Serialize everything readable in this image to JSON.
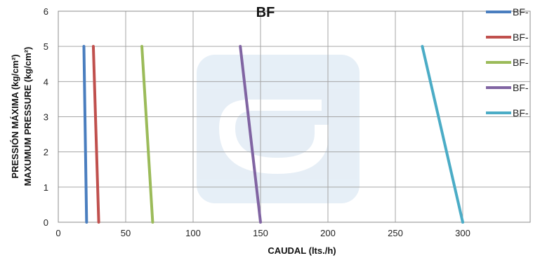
{
  "chart_data": {
    "type": "line",
    "title": "BF",
    "xlabel": "CAUDAL (lts./h)",
    "ylabel_lines": [
      "PRESSIÓN MÁXIMA (kg/cm²)",
      "MAXUMUM PRESSURE (kg/cm²)"
    ],
    "xlim": [
      0,
      350
    ],
    "ylim": [
      0,
      6
    ],
    "x_ticks": [
      0,
      50,
      100,
      150,
      200,
      250,
      300
    ],
    "y_ticks": [
      0,
      1,
      2,
      3,
      4,
      5,
      6
    ],
    "grid": true,
    "legend_position": "right",
    "series": [
      {
        "name": "BF-",
        "color": "#4a7ebf",
        "points": [
          [
            19,
            5
          ],
          [
            21,
            0
          ]
        ]
      },
      {
        "name": "BF-",
        "color": "#c0504d",
        "points": [
          [
            26,
            5
          ],
          [
            30,
            0
          ]
        ]
      },
      {
        "name": "BF-",
        "color": "#9bbb59",
        "points": [
          [
            62,
            5
          ],
          [
            70,
            0
          ]
        ]
      },
      {
        "name": "BF-",
        "color": "#8064a2",
        "points": [
          [
            135,
            5
          ],
          [
            150,
            0
          ]
        ]
      },
      {
        "name": "BF-",
        "color": "#4bacc6",
        "points": [
          [
            270,
            5
          ],
          [
            300,
            0
          ]
        ]
      }
    ]
  }
}
